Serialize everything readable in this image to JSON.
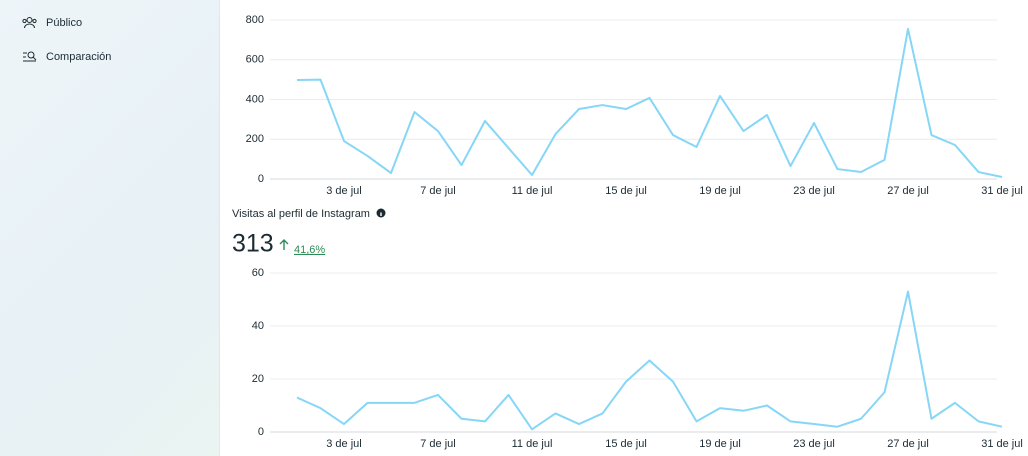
{
  "sidebar": {
    "items": [
      "Público",
      "Comparación"
    ]
  },
  "chart_data": [
    {
      "type": "line",
      "categories": [
        null,
        null,
        "3 de jul",
        null,
        null,
        null,
        "7 de jul",
        null,
        null,
        null,
        "11 de jul",
        null,
        null,
        null,
        "15 de jul",
        null,
        null,
        null,
        "19 de jul",
        null,
        null,
        null,
        "23 de jul",
        null,
        null,
        null,
        "27 de jul",
        null,
        null,
        null,
        "31 de jul"
      ],
      "series": [
        {
          "color": "#86d6f7",
          "values": [
            498,
            500,
            191,
            116,
            30,
            337,
            241,
            70,
            292,
            156,
            20,
            226,
            352,
            372,
            352,
            408,
            221,
            161,
            418,
            241,
            322,
            65,
            282,
            50,
            35,
            96,
            755,
            221,
            171,
            35,
            10
          ]
        }
      ],
      "ylim": [
        0,
        800
      ],
      "yticks": [
        0,
        200,
        400,
        600,
        800
      ],
      "grid": true
    },
    {
      "type": "line",
      "title": "Visitas al perfil de Instagram",
      "headline": "313",
      "change": "41,6%",
      "categories": [
        null,
        null,
        "3 de jul",
        null,
        null,
        null,
        "7 de jul",
        null,
        null,
        null,
        "11 de jul",
        null,
        null,
        null,
        "15 de jul",
        null,
        null,
        null,
        "19 de jul",
        null,
        null,
        null,
        "23 de jul",
        null,
        null,
        null,
        "27 de jul",
        null,
        null,
        null,
        "31 de jul"
      ],
      "series": [
        {
          "color": "#86d6f7",
          "values": [
            13,
            9,
            3,
            11,
            11,
            11,
            14,
            5,
            4,
            14,
            1,
            7,
            3,
            7,
            19,
            27,
            19,
            4,
            9,
            8,
            10,
            4,
            3,
            2,
            5,
            15,
            53,
            5,
            11,
            4,
            2
          ]
        }
      ],
      "ylim": [
        0,
        60
      ],
      "yticks": [
        0,
        20,
        40,
        60
      ],
      "grid": true
    }
  ]
}
